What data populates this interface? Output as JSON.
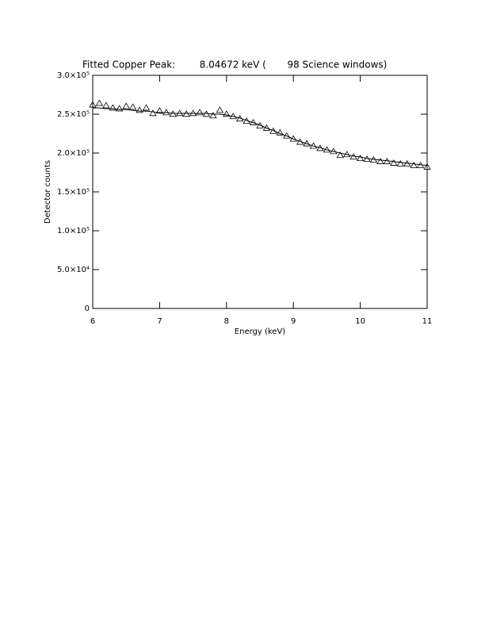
{
  "chart_data": {
    "type": "scatter",
    "title": "Fitted Copper Peak:        8.04672 keV (       98 Science windows)",
    "x_label": "Energy (keV)",
    "y_label": "Detector counts",
    "xlim": [
      6,
      11
    ],
    "xticks": [
      6,
      7,
      8,
      9,
      10,
      11
    ],
    "ylim": [
      0,
      300000
    ],
    "yticks": [
      0,
      {
        "value": 50000,
        "label": "5.0×10⁴"
      },
      {
        "value": 100000,
        "label": "1.0×10⁵"
      },
      {
        "value": 150000,
        "label": "1.5×10⁵"
      },
      {
        "value": 200000,
        "label": "2.0×10⁵"
      },
      {
        "value": 250000,
        "label": "2.5×10⁵"
      },
      {
        "value": 300000,
        "label": "3.0×10⁵"
      }
    ],
    "x": [
      6.0,
      6.1,
      6.2,
      6.3,
      6.4,
      6.5,
      6.6,
      6.7,
      6.8,
      6.9,
      7.0,
      7.1,
      7.2,
      7.3,
      7.4,
      7.5,
      7.6,
      7.7,
      7.8,
      7.9,
      8.0,
      8.1,
      8.2,
      8.3,
      8.4,
      8.5,
      8.6,
      8.7,
      8.8,
      8.9,
      9.0,
      9.1,
      9.2,
      9.3,
      9.4,
      9.5,
      9.6,
      9.7,
      9.8,
      9.9,
      10.0,
      10.1,
      10.2,
      10.3,
      10.4,
      10.5,
      10.6,
      10.7,
      10.8,
      10.9,
      11.0
    ],
    "series": [
      {
        "mode": "markers",
        "marker": "triangle",
        "color": "#000000",
        "values": [
          262000,
          264000,
          261000,
          258000,
          257000,
          260000,
          259000,
          255000,
          258000,
          251000,
          254000,
          252000,
          250000,
          251000,
          250000,
          251000,
          252000,
          250000,
          248000,
          255000,
          250000,
          247000,
          244000,
          241000,
          239000,
          235000,
          232000,
          228000,
          226000,
          222000,
          218000,
          214000,
          212000,
          209000,
          206000,
          204000,
          202000,
          197000,
          198000,
          195000,
          193000,
          192000,
          191000,
          189000,
          189000,
          187000,
          186000,
          186000,
          184000,
          184000,
          182000
        ]
      },
      {
        "mode": "line",
        "color": "#000000",
        "values": [
          258000,
          258000,
          257000,
          257000,
          256000,
          256000,
          255000,
          254000,
          254000,
          253000,
          252000,
          252000,
          251000,
          251000,
          251000,
          251000,
          251000,
          251000,
          250000,
          250000,
          249000,
          247000,
          245000,
          242000,
          239000,
          236000,
          232000,
          229000,
          225000,
          222000,
          218000,
          215000,
          212000,
          209000,
          207000,
          204000,
          202000,
          200000,
          198000,
          196000,
          195000,
          193000,
          192000,
          191000,
          190000,
          189000,
          188000,
          187000,
          186000,
          185000,
          184000
        ]
      }
    ]
  }
}
